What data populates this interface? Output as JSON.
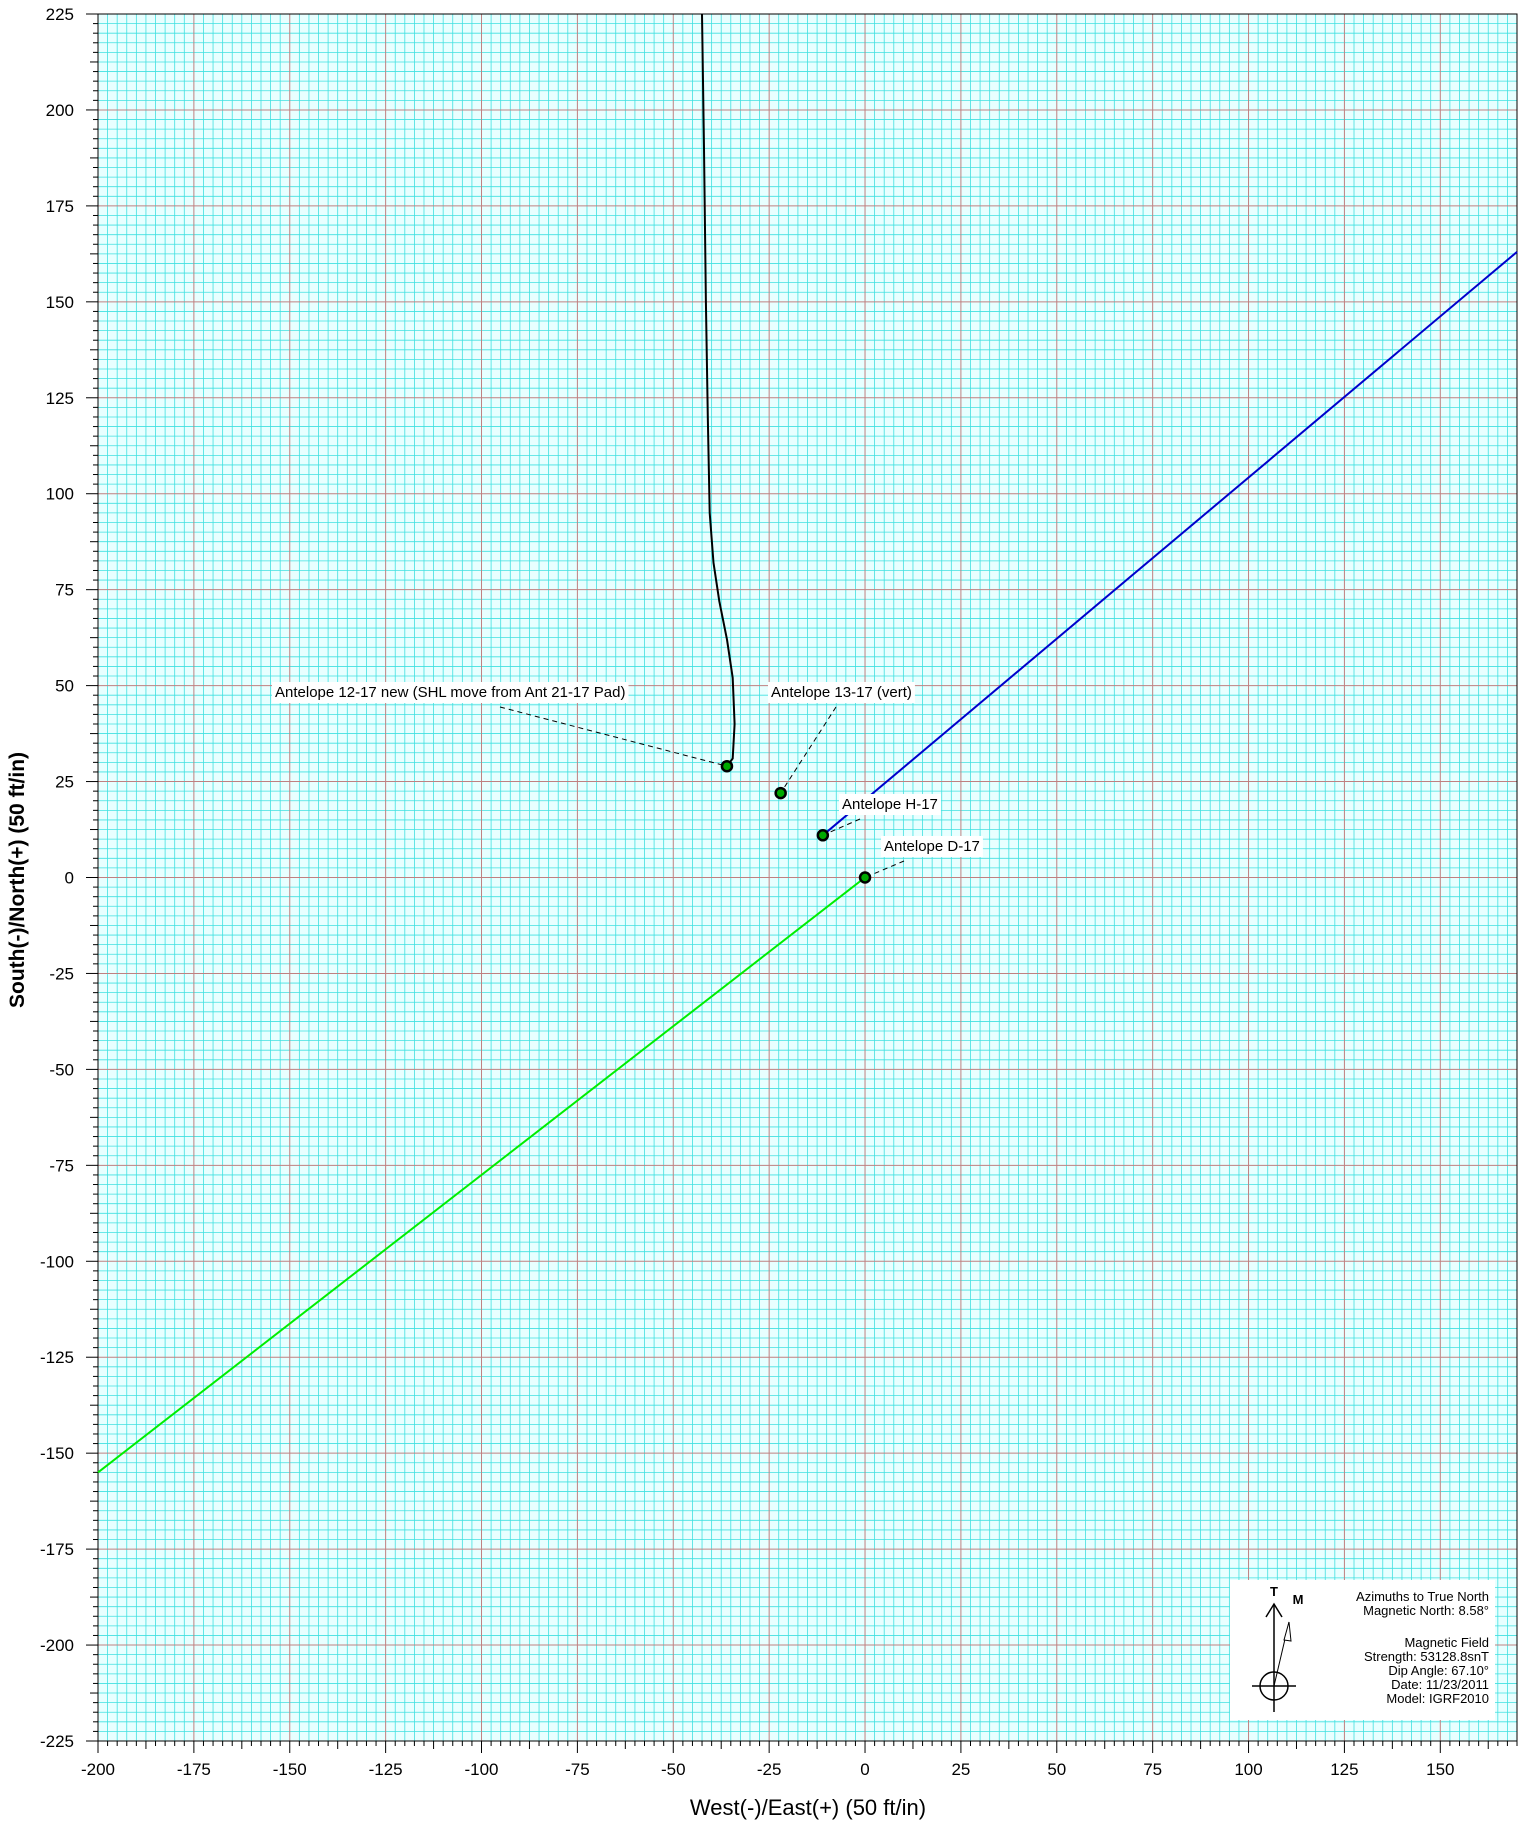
{
  "chart_data": {
    "type": "line",
    "xlabel": "West(-)/East(+) (50 ft/in)",
    "ylabel": "South(-)/North(+) (50 ft/in)",
    "xlim": [
      -200,
      170
    ],
    "ylim": [
      -225,
      225
    ],
    "x_ticks": [
      -200,
      -175,
      -150,
      -125,
      -100,
      -75,
      -50,
      -25,
      0,
      25,
      50,
      75,
      100,
      125,
      150
    ],
    "y_ticks": [
      225,
      200,
      175,
      150,
      125,
      100,
      75,
      50,
      25,
      0,
      -25,
      -50,
      -75,
      -100,
      -125,
      -150,
      -175,
      -200,
      -225
    ],
    "grid": true,
    "grid_colors": {
      "major": "#c08080",
      "minor": "#40e0e0",
      "background": "#e8ffff"
    },
    "series": [
      {
        "color": "#000000",
        "points": [
          [
            -36,
            29
          ],
          [
            -34.5,
            31
          ],
          [
            -34,
            40
          ],
          [
            -34.5,
            52
          ],
          [
            -36,
            62
          ],
          [
            -38,
            72
          ],
          [
            -39.5,
            82
          ],
          [
            -40.5,
            95
          ],
          [
            -41,
            120
          ],
          [
            -41.5,
            150
          ],
          [
            -42,
            190
          ],
          [
            -42.5,
            225
          ]
        ]
      },
      {
        "color": "#0000cc",
        "points": [
          [
            -11,
            11
          ],
          [
            170,
            163
          ]
        ]
      },
      {
        "color": "#00ee00",
        "points": [
          [
            0,
            0
          ],
          [
            -200,
            -155
          ]
        ]
      }
    ],
    "wells": [
      {
        "label": "Antelope 12-17 new (SHL move from Ant 21-17 Pad)",
        "x": -36,
        "y": 29
      },
      {
        "label": "Antelope 13-17 (vert)",
        "x": -22,
        "y": 22
      },
      {
        "label": "Antelope H-17",
        "x": -11,
        "y": 11
      },
      {
        "label": "Antelope D-17",
        "x": 0,
        "y": 0
      }
    ]
  },
  "legend": {
    "true_north_letter": "T",
    "magnetic_letter": "M",
    "lines": [
      "Azimuths to True North",
      "Magnetic North: 8.58°",
      "",
      "Magnetic Field",
      "Strength: 53128.8snT",
      "Dip Angle: 67.10°",
      "Date:  11/23/2011",
      "Model: IGRF2010"
    ],
    "magnetic_declination_deg": 8.58
  }
}
